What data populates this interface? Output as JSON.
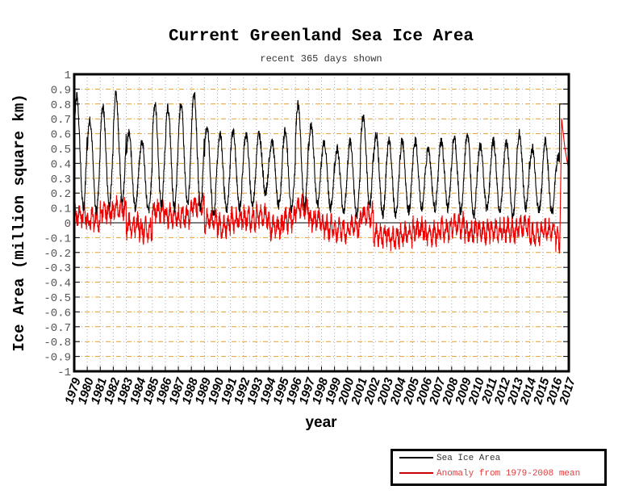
{
  "chart_data": {
    "type": "line",
    "title": "Current Greenland Sea Ice Area",
    "subtitle": "recent 365 days shown",
    "xlabel": "year",
    "ylabel": "Ice Area (million square km)",
    "xlim": [
      1979,
      2017
    ],
    "ylim": [
      -1,
      1
    ],
    "x_ticks": [
      "1979",
      "1980",
      "1981",
      "1982",
      "1983",
      "1984",
      "1985",
      "1986",
      "1987",
      "1988",
      "1989",
      "1990",
      "1991",
      "1992",
      "1993",
      "1994",
      "1995",
      "1996",
      "1997",
      "1998",
      "1999",
      "2000",
      "2001",
      "2002",
      "2003",
      "2004",
      "2005",
      "2006",
      "2007",
      "2008",
      "2009",
      "2010",
      "2011",
      "2012",
      "2013",
      "2014",
      "2015",
      "2016",
      "2017"
    ],
    "y_ticks": [
      "1",
      "0.9",
      "0.8",
      "0.7",
      "0.6",
      "0.5",
      "0.4",
      "0.3",
      "0.2",
      "0.1",
      "0",
      "-0.1",
      "-0.2",
      "-0.3",
      "-0.4",
      "-0.5",
      "-0.6",
      "-0.7",
      "-0.8",
      "-0.9",
      "-1"
    ],
    "grid": true,
    "legend_position": "bottom-right",
    "years": [
      1979,
      1980,
      1981,
      1982,
      1983,
      1984,
      1985,
      1986,
      1987,
      1988,
      1989,
      1990,
      1991,
      1992,
      1993,
      1994,
      1995,
      1996,
      1997,
      1998,
      1999,
      2000,
      2001,
      2002,
      2003,
      2004,
      2005,
      2006,
      2007,
      2008,
      2009,
      2010,
      2011,
      2012,
      2013,
      2014,
      2015,
      2016
    ],
    "series": [
      {
        "name": "Sea Ice Area",
        "color": "#000000",
        "annual_max": [
          0.85,
          0.7,
          0.78,
          0.87,
          0.6,
          0.55,
          0.8,
          0.77,
          0.8,
          0.88,
          0.65,
          0.6,
          0.62,
          0.6,
          0.6,
          0.55,
          0.62,
          0.8,
          0.65,
          0.55,
          0.5,
          0.55,
          0.72,
          0.6,
          0.55,
          0.55,
          0.55,
          0.5,
          0.55,
          0.57,
          0.6,
          0.52,
          0.55,
          0.55,
          0.6,
          0.5,
          0.55,
          0.45
        ],
        "annual_min": [
          0.1,
          0.08,
          0.12,
          0.15,
          0.1,
          0.08,
          0.12,
          0.1,
          0.12,
          0.1,
          0.05,
          0.08,
          0.1,
          0.12,
          0.2,
          0.12,
          0.1,
          0.1,
          0.12,
          0.1,
          0.08,
          0.05,
          0.12,
          0.05,
          0.05,
          0.08,
          0.1,
          0.1,
          0.1,
          0.08,
          0.06,
          0.1,
          0.08,
          0.05,
          0.1,
          0.08,
          0.06,
          0.1
        ],
        "recent_value": 0.8
      },
      {
        "name": "Anomaly from 1979-2008 mean",
        "color": "#ee0000",
        "annual_mean": [
          0.05,
          0.02,
          0.08,
          0.1,
          -0.02,
          -0.05,
          0.08,
          0.05,
          0.05,
          0.12,
          0.02,
          -0.02,
          0.02,
          0.03,
          0.05,
          -0.03,
          0.02,
          0.1,
          0.02,
          -0.03,
          -0.05,
          -0.03,
          0.05,
          -0.08,
          -0.1,
          -0.08,
          -0.05,
          -0.07,
          -0.04,
          -0.02,
          -0.06,
          -0.06,
          -0.05,
          -0.05,
          -0.02,
          -0.08,
          -0.05,
          -0.12
        ],
        "recent_peak": 0.7,
        "recent_end": 0.35
      }
    ]
  },
  "colors": {
    "grid_h": "#e0a030",
    "grid_v": "#aaaaaa",
    "zero_line": "#000000"
  }
}
